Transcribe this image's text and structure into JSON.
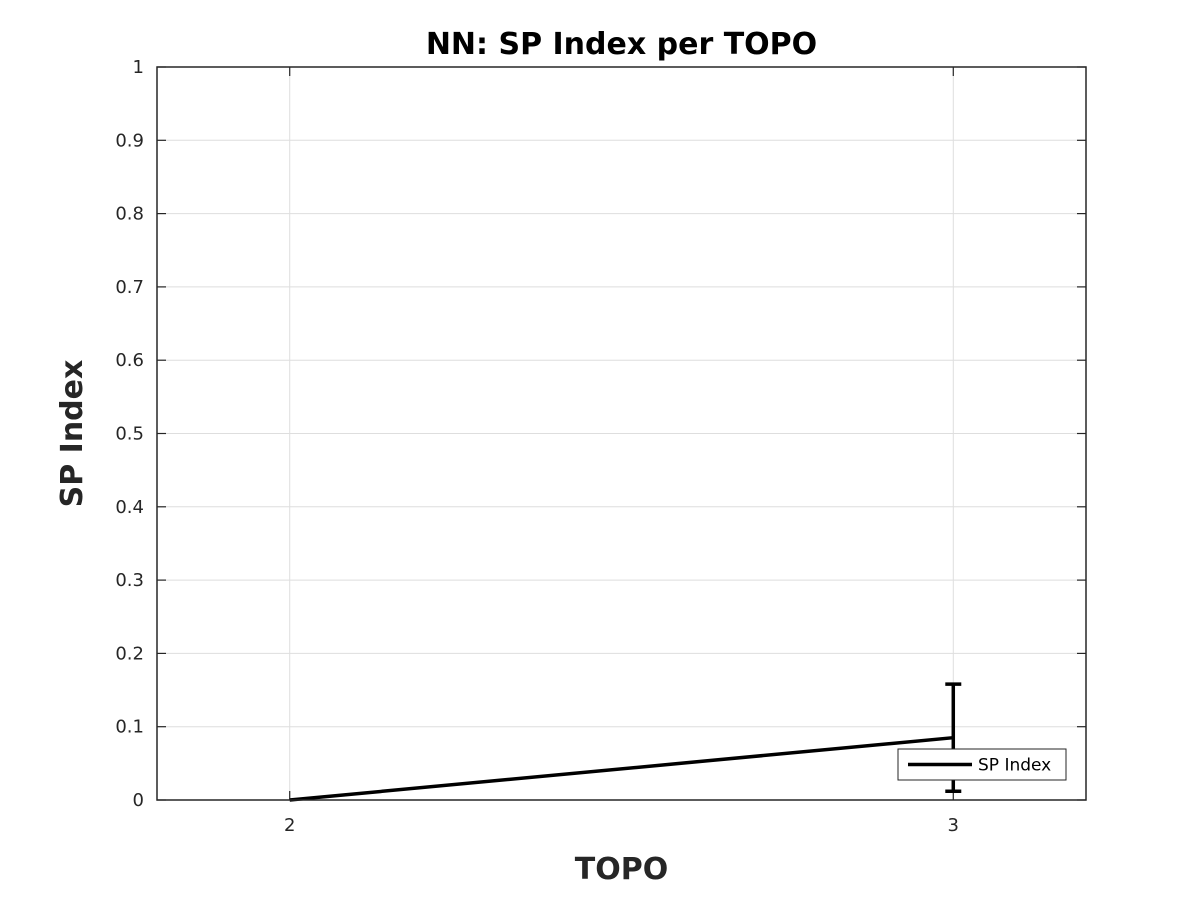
{
  "chart_data": {
    "type": "line",
    "title": "NN: SP Index per TOPO",
    "xlabel": "TOPO",
    "ylabel": "SP Index",
    "x": [
      2,
      3
    ],
    "xlim": [
      1.8,
      3.2
    ],
    "ylim": [
      0,
      1
    ],
    "xticks": [
      2,
      3
    ],
    "yticks": [
      0,
      0.1,
      0.2,
      0.3,
      0.4,
      0.5,
      0.6,
      0.7,
      0.8,
      0.9,
      1
    ],
    "ytick_labels": [
      "0",
      "0.1",
      "0.2",
      "0.3",
      "0.4",
      "0.5",
      "0.6",
      "0.7",
      "0.8",
      "0.9",
      "1"
    ],
    "grid": true,
    "legend_position": "bottom-right",
    "series": [
      {
        "name": "SP Index",
        "values": [
          0,
          0.085
        ],
        "error_lower": [
          0,
          0.073
        ],
        "error_upper": [
          0,
          0.073
        ],
        "color": "#000000"
      }
    ]
  }
}
